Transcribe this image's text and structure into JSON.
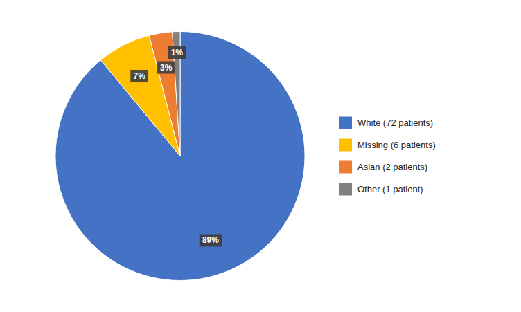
{
  "chart_data": {
    "type": "pie",
    "categories": [
      "White (72 patients)",
      "Missing (6 patients)",
      "Asian (2 patients)",
      "Other (1 patient)"
    ],
    "values": [
      89,
      7,
      3,
      1
    ],
    "value_labels": [
      "89%",
      "7%",
      "3%",
      "1%"
    ],
    "colors": [
      "#4472C4",
      "#FFC000",
      "#ED7D31",
      "#808080"
    ],
    "data_labels": true,
    "legend": "right"
  }
}
